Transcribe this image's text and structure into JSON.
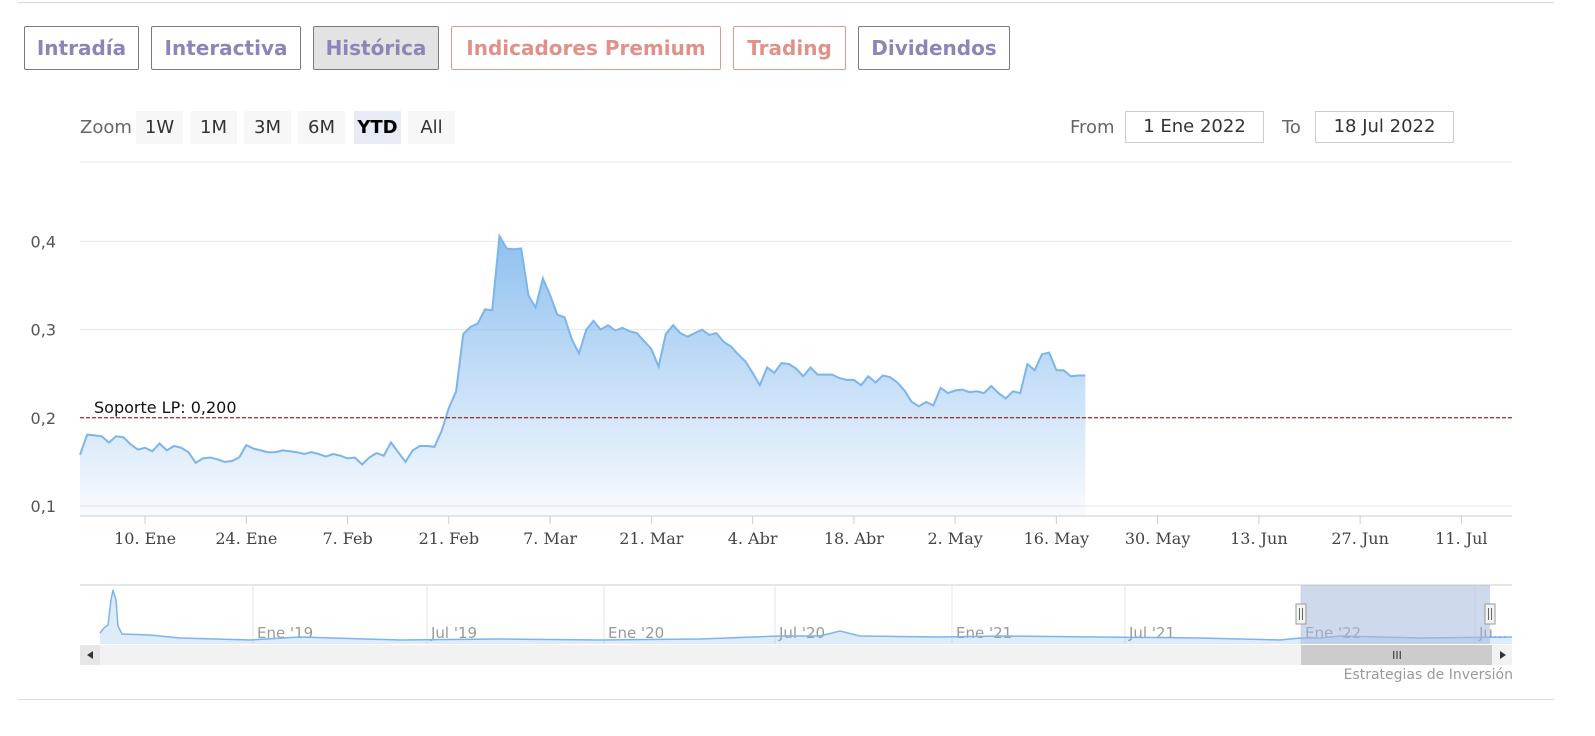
{
  "tabs": [
    {
      "label": "Intradía",
      "style": "normal"
    },
    {
      "label": "Interactiva",
      "style": "normal"
    },
    {
      "label": "Histórica",
      "style": "active"
    },
    {
      "label": "Indicadores Premium",
      "style": "premium"
    },
    {
      "label": "Trading",
      "style": "premium"
    },
    {
      "label": "Dividendos",
      "style": "normal"
    }
  ],
  "range_selector": {
    "zoom_label": "Zoom",
    "buttons": [
      "1W",
      "1M",
      "3M",
      "6M",
      "YTD",
      "All"
    ],
    "selected": "YTD",
    "from_label": "From",
    "from_value": "1 Ene 2022",
    "to_label": "To",
    "to_value": "18 Jul 2022"
  },
  "credit": "Estrategias de Inversión",
  "colors": {
    "line": "#7cb5ec",
    "fill_top": "#7cb5ec",
    "support": "#8b0000",
    "tab_text": "#8c86b8",
    "premium_text": "#e0918a"
  },
  "chart_data": {
    "type": "area",
    "title": "",
    "xlabel": "",
    "ylabel": "",
    "ylim": [
      0.1,
      0.4
    ],
    "yticks": [
      "0,1",
      "0,2",
      "0,3",
      "0,4"
    ],
    "xticks": [
      {
        "label": "10. Ene",
        "day": 9
      },
      {
        "label": "24. Ene",
        "day": 23
      },
      {
        "label": "7. Feb",
        "day": 37
      },
      {
        "label": "21. Feb",
        "day": 51
      },
      {
        "label": "7. Mar",
        "day": 65
      },
      {
        "label": "21. Mar",
        "day": 79
      },
      {
        "label": "4. Abr",
        "day": 93
      },
      {
        "label": "18. Abr",
        "day": 107
      },
      {
        "label": "2. May",
        "day": 121
      },
      {
        "label": "16. May",
        "day": 135
      },
      {
        "label": "30. May",
        "day": 149
      },
      {
        "label": "13. Jun",
        "day": 163
      },
      {
        "label": "27. Jun",
        "day": 177
      },
      {
        "label": "11. Jul",
        "day": 191
      }
    ],
    "x_range_days": [
      0,
      198
    ],
    "series": [
      {
        "values": [
          [
            0,
            0.158
          ],
          [
            1,
            0.181
          ],
          [
            2,
            0.18
          ],
          [
            3,
            0.179
          ],
          [
            4,
            0.172
          ],
          [
            5,
            0.179
          ],
          [
            6,
            0.178
          ],
          [
            7,
            0.17
          ],
          [
            8,
            0.164
          ],
          [
            9,
            0.166
          ],
          [
            10,
            0.162
          ],
          [
            11,
            0.171
          ],
          [
            12,
            0.163
          ],
          [
            13,
            0.168
          ],
          [
            14,
            0.166
          ],
          [
            15,
            0.161
          ],
          [
            16,
            0.149
          ],
          [
            17,
            0.154
          ],
          [
            18,
            0.155
          ],
          [
            19,
            0.153
          ],
          [
            20,
            0.15
          ],
          [
            21,
            0.151
          ],
          [
            22,
            0.155
          ],
          [
            23,
            0.169
          ],
          [
            24,
            0.165
          ],
          [
            25,
            0.163
          ],
          [
            26,
            0.161
          ],
          [
            27,
            0.161
          ],
          [
            28,
            0.163
          ],
          [
            29,
            0.162
          ],
          [
            30,
            0.161
          ],
          [
            31,
            0.159
          ],
          [
            32,
            0.161
          ],
          [
            33,
            0.159
          ],
          [
            34,
            0.156
          ],
          [
            35,
            0.159
          ],
          [
            36,
            0.157
          ],
          [
            37,
            0.154
          ],
          [
            38,
            0.155
          ],
          [
            39,
            0.147
          ],
          [
            40,
            0.155
          ],
          [
            41,
            0.16
          ],
          [
            42,
            0.157
          ],
          [
            43,
            0.172
          ],
          [
            44,
            0.161
          ],
          [
            45,
            0.15
          ],
          [
            46,
            0.163
          ],
          [
            47,
            0.168
          ],
          [
            48,
            0.168
          ],
          [
            49,
            0.167
          ],
          [
            50,
            0.185
          ],
          [
            51,
            0.211
          ],
          [
            52,
            0.23
          ],
          [
            53,
            0.295
          ],
          [
            54,
            0.303
          ],
          [
            55,
            0.307
          ],
          [
            56,
            0.323
          ],
          [
            57,
            0.322
          ],
          [
            58,
            0.406
          ],
          [
            59,
            0.392
          ],
          [
            60,
            0.391
          ],
          [
            61,
            0.392
          ],
          [
            62,
            0.339
          ],
          [
            63,
            0.325
          ],
          [
            64,
            0.358
          ],
          [
            65,
            0.339
          ],
          [
            66,
            0.317
          ],
          [
            67,
            0.314
          ],
          [
            68,
            0.289
          ],
          [
            69,
            0.273
          ],
          [
            70,
            0.3
          ],
          [
            71,
            0.31
          ],
          [
            72,
            0.3
          ],
          [
            73,
            0.305
          ],
          [
            74,
            0.299
          ],
          [
            75,
            0.302
          ],
          [
            76,
            0.298
          ],
          [
            77,
            0.296
          ],
          [
            78,
            0.287
          ],
          [
            79,
            0.278
          ],
          [
            80,
            0.258
          ],
          [
            81,
            0.295
          ],
          [
            82,
            0.305
          ],
          [
            83,
            0.296
          ],
          [
            84,
            0.292
          ],
          [
            85,
            0.296
          ],
          [
            86,
            0.3
          ],
          [
            87,
            0.294
          ],
          [
            88,
            0.296
          ],
          [
            89,
            0.286
          ],
          [
            90,
            0.281
          ],
          [
            91,
            0.272
          ],
          [
            92,
            0.264
          ],
          [
            93,
            0.251
          ],
          [
            94,
            0.237
          ],
          [
            95,
            0.257
          ],
          [
            96,
            0.251
          ],
          [
            97,
            0.262
          ],
          [
            98,
            0.261
          ],
          [
            99,
            0.256
          ],
          [
            100,
            0.247
          ],
          [
            101,
            0.257
          ],
          [
            102,
            0.249
          ],
          [
            103,
            0.249
          ],
          [
            104,
            0.249
          ],
          [
            105,
            0.245
          ],
          [
            106,
            0.243
          ],
          [
            107,
            0.243
          ],
          [
            108,
            0.237
          ],
          [
            109,
            0.247
          ],
          [
            110,
            0.24
          ],
          [
            111,
            0.248
          ],
          [
            112,
            0.246
          ],
          [
            113,
            0.24
          ],
          [
            114,
            0.231
          ],
          [
            115,
            0.218
          ],
          [
            116,
            0.213
          ],
          [
            117,
            0.218
          ],
          [
            118,
            0.214
          ],
          [
            119,
            0.234
          ],
          [
            120,
            0.228
          ],
          [
            121,
            0.231
          ],
          [
            122,
            0.232
          ],
          [
            123,
            0.229
          ],
          [
            124,
            0.23
          ],
          [
            125,
            0.228
          ],
          [
            126,
            0.236
          ],
          [
            127,
            0.228
          ],
          [
            128,
            0.222
          ],
          [
            129,
            0.23
          ],
          [
            130,
            0.228
          ],
          [
            131,
            0.261
          ],
          [
            132,
            0.254
          ],
          [
            133,
            0.272
          ],
          [
            134,
            0.274
          ],
          [
            135,
            0.254
          ],
          [
            136,
            0.254
          ],
          [
            137,
            0.247
          ],
          [
            138,
            0.248
          ],
          [
            139,
            0.248
          ]
        ]
      }
    ],
    "plot_lines": [
      {
        "value": 0.2,
        "label": "Soporte LP: 0,200",
        "style": "dashed"
      }
    ],
    "navigator": {
      "labels": [
        "Ene '19",
        "Jul '19",
        "Ene '20",
        "Jul '20",
        "Ene '21",
        "Jul '21",
        "Ene '22",
        "Ju..."
      ],
      "selected_range": [
        "1 Ene 2022",
        "18 Jul 2022"
      ],
      "scrollbar_grip": "III"
    }
  }
}
